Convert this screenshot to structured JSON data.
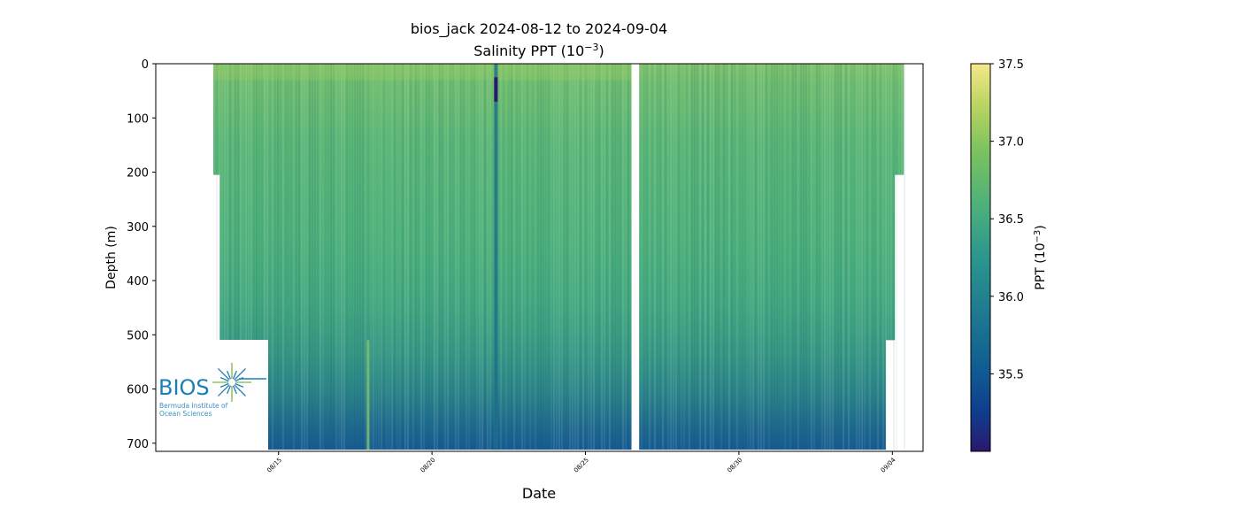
{
  "chart_data": {
    "type": "heatmap",
    "title": "bios_jack 2024-08-12 to 2024-09-04",
    "subtitle": "Salinity PPT (10",
    "subtitle_exp": "−3",
    "subtitle_end": ")",
    "xlabel": "Date",
    "ylabel": "Depth (m)",
    "x_range": [
      "2024-08-11",
      "2024-09-05"
    ],
    "y_range": [
      0,
      715
    ],
    "y_inverted": true,
    "grid": false,
    "x_ticks": [
      {
        "date": "2024-08-15",
        "label": "08/15"
      },
      {
        "date": "2024-08-20",
        "label": "08/20"
      },
      {
        "date": "2024-08-25",
        "label": "08/25"
      },
      {
        "date": "2024-08-30",
        "label": "08/30"
      },
      {
        "date": "2024-09-04",
        "label": "09/04"
      }
    ],
    "y_ticks": [
      0,
      100,
      200,
      300,
      400,
      500,
      600,
      700
    ],
    "colorbar": {
      "colormap": "haline",
      "vmin": 35.0,
      "vmax": 37.5,
      "ticks": [
        "35.5",
        "36.0",
        "36.5",
        "37.0",
        "37.5"
      ],
      "label": "PPT (10",
      "label_exp": "−3",
      "label_end": ")"
    },
    "sample_profiles": [
      {
        "depth": 0,
        "salinity": 36.8
      },
      {
        "depth": 100,
        "salinity": 36.65
      },
      {
        "depth": 200,
        "salinity": 36.55
      },
      {
        "depth": 300,
        "salinity": 36.45
      },
      {
        "depth": 400,
        "salinity": 36.35
      },
      {
        "depth": 500,
        "salinity": 36.2
      },
      {
        "depth": 600,
        "salinity": 36.0
      },
      {
        "depth": 700,
        "salinity": 35.8
      }
    ],
    "data_gap": {
      "start": "2024-08-26T12:00",
      "end": "2024-08-26T18:00"
    }
  },
  "logo": {
    "name": "BIOS",
    "line1": "Bermuda Institute of",
    "line2": "Ocean Sciences"
  }
}
